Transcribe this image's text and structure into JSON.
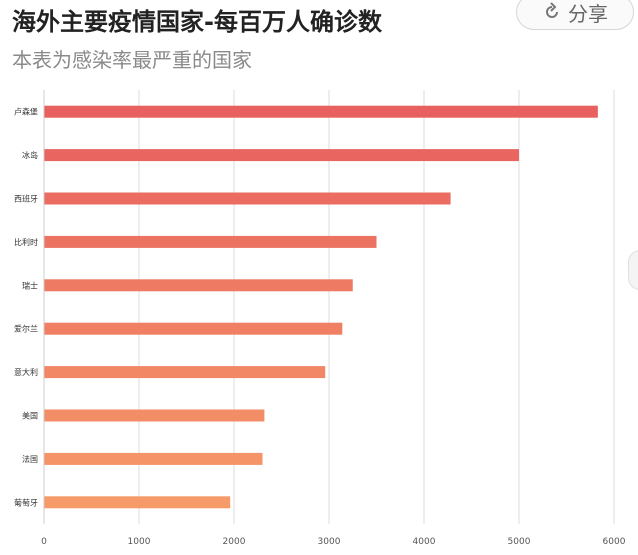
{
  "header": {
    "title": "海外主要疫情国家-每百万人确诊数",
    "subtitle": "本表为感染率最严重的国家",
    "share_label": "分享"
  },
  "colors": {
    "bar_top": "#e8605f",
    "bar_bottom": "#f59a68",
    "grid": "#dcdcdc"
  },
  "chart_data": {
    "type": "bar",
    "orientation": "horizontal",
    "title": "海外主要疫情国家-每百万人确诊数",
    "subtitle": "本表为感染率最严重的国家",
    "categories": [
      "卢森堡",
      "冰岛",
      "西班牙",
      "比利时",
      "瑞士",
      "爱尔兰",
      "意大利",
      "美国",
      "法国",
      "葡萄牙"
    ],
    "values": [
      5830,
      5000,
      4280,
      3500,
      3250,
      3140,
      2960,
      2320,
      2300,
      1960
    ],
    "xlim": [
      0,
      6000
    ],
    "xticks": [
      0,
      1000,
      2000,
      3000,
      4000,
      5000,
      6000
    ],
    "grid": true,
    "legend": "none"
  }
}
